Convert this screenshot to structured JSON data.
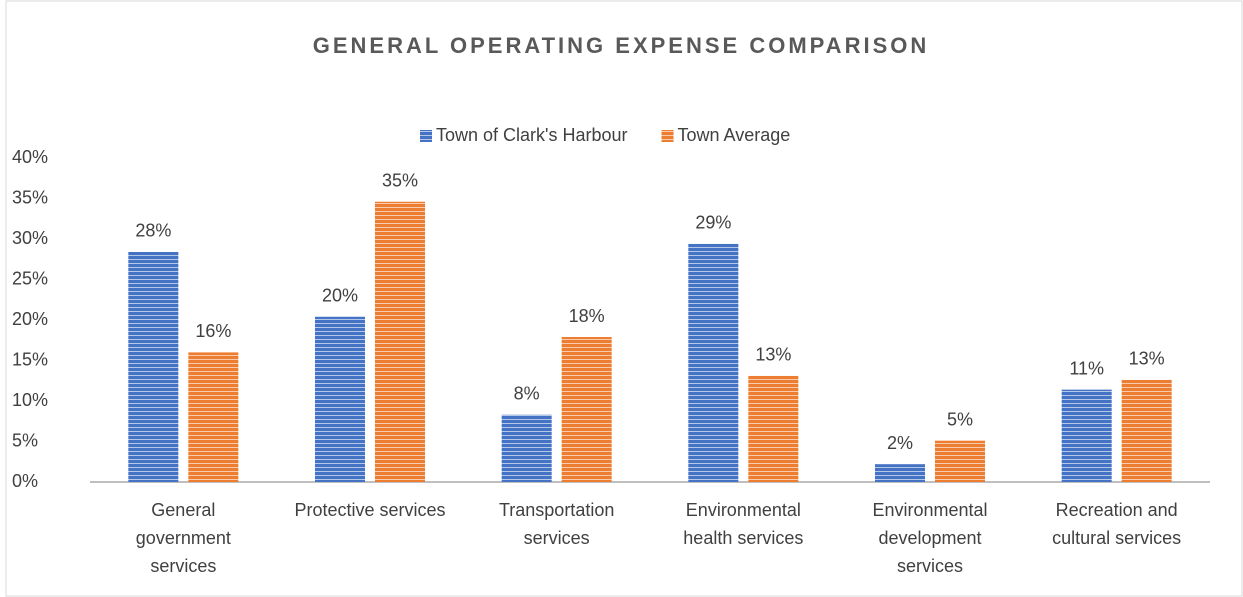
{
  "chart_data": {
    "type": "bar",
    "title": "GENERAL OPERATING EXPENSE COMPARISON",
    "categories": [
      "General\ngovernment\nservices",
      "Protective services",
      "Transportation\nservices",
      "Environmental\nhealth services",
      "Environmental\ndevelopment\nservices",
      "Recreation and\ncultural services"
    ],
    "series": [
      {
        "name": "Town of Clark's Harbour",
        "color": "#4472c4",
        "values": [
          28.4,
          20.4,
          8.3,
          29.4,
          2.2,
          11.4
        ],
        "value_labels": [
          "28%",
          "20%",
          "8%",
          "29%",
          "2%",
          "11%"
        ]
      },
      {
        "name": "Town Average",
        "color": "#ed7d31",
        "values": [
          16.0,
          34.6,
          17.9,
          13.1,
          5.1,
          12.6
        ],
        "value_labels": [
          "16%",
          "35%",
          "18%",
          "13%",
          "5%",
          "13%"
        ]
      }
    ],
    "ylim": [
      0,
      40
    ],
    "yticks": [
      {
        "value": 0,
        "label": "0%"
      },
      {
        "value": 5,
        "label": "5%"
      },
      {
        "value": 10,
        "label": "10%"
      },
      {
        "value": 15,
        "label": "15%"
      },
      {
        "value": 20,
        "label": "20%"
      },
      {
        "value": 25,
        "label": "25%"
      },
      {
        "value": 30,
        "label": "30%"
      },
      {
        "value": 35,
        "label": "35%"
      },
      {
        "value": 40,
        "label": "40%"
      }
    ],
    "grid": false,
    "legend": "top"
  }
}
